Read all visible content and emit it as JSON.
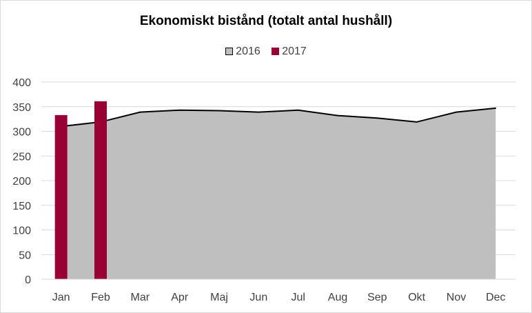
{
  "chart_data": {
    "type": "area",
    "title": "Ekonomiskt bistånd (totalt antal hushåll)",
    "xlabel": "",
    "ylabel": "",
    "categories": [
      "Jan",
      "Feb",
      "Mar",
      "Apr",
      "Maj",
      "Jun",
      "Jul",
      "Aug",
      "Sep",
      "Okt",
      "Nov",
      "Dec"
    ],
    "ylim": [
      0,
      400
    ],
    "yticks": [
      "0",
      "50",
      "100",
      "150",
      "200",
      "250",
      "300",
      "350",
      "400"
    ],
    "grid": true,
    "legend_position": "top",
    "series": [
      {
        "name": "2016",
        "kind": "area",
        "color": "#bfbfbf",
        "line_color": "#000000",
        "values": [
          310,
          319,
          339,
          343,
          342,
          339,
          343,
          332,
          327,
          319,
          339,
          347
        ]
      },
      {
        "name": "2017",
        "kind": "bar",
        "color": "#990033",
        "values": [
          333,
          361,
          null,
          null,
          null,
          null,
          null,
          null,
          null,
          null,
          null,
          null
        ]
      }
    ]
  }
}
